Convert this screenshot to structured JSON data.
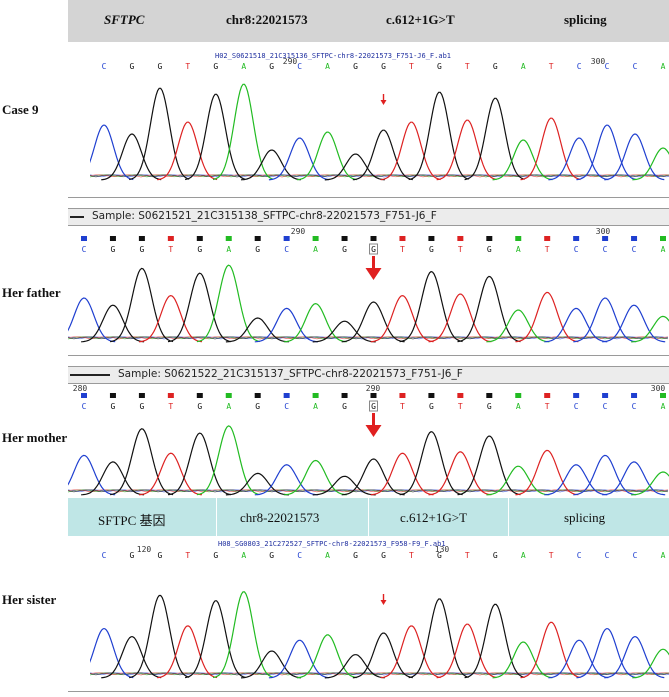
{
  "header_top": {
    "gene": "SFTPC",
    "position": "chr8:22021573",
    "variant": "c.612+1G>T",
    "type": "splicing"
  },
  "header_mid": {
    "gene": "SFTPC 基因",
    "position": "chr8-22021573",
    "variant": "c.612+1G>T",
    "type": "splicing"
  },
  "panels": [
    {
      "label": "Case 9",
      "filename": "H02_S0621518_21C315136_SFTPC-chr8-22021573_F751-J6_F.ab1",
      "sample": "",
      "ticks": [
        "290",
        "300"
      ],
      "bases": [
        "C",
        "G",
        "G",
        "T",
        "G",
        "A",
        "G",
        "C",
        "A",
        "G",
        "G",
        "T",
        "G",
        "T",
        "G",
        "A",
        "T",
        "C",
        "C",
        "C",
        "A"
      ]
    },
    {
      "label": "Her father",
      "filename": "",
      "sample": "Sample: S0621521_21C315138_SFTPC-chr8-22021573_F751-J6_F",
      "ticks": [
        "290",
        "300"
      ],
      "bases": [
        "C",
        "G",
        "G",
        "T",
        "G",
        "A",
        "G",
        "C",
        "A",
        "G",
        "G",
        "T",
        "G",
        "T",
        "G",
        "A",
        "T",
        "C",
        "C",
        "C",
        "A"
      ]
    },
    {
      "label": "Her mother",
      "filename": "",
      "sample": "Sample: S0621522_21C315137_SFTPC-chr8-22021573_F751-J6_F",
      "ticks": [
        "280",
        "290",
        "300"
      ],
      "bases": [
        "C",
        "G",
        "G",
        "T",
        "G",
        "A",
        "G",
        "C",
        "A",
        "G",
        "G",
        "T",
        "G",
        "T",
        "G",
        "A",
        "T",
        "C",
        "C",
        "C",
        "A"
      ]
    },
    {
      "label": "Her sister",
      "filename": "H08_SG0803_21C272527_SFTPC-chr8-22021573_F958-F9_F.ab1",
      "sample": "",
      "ticks": [
        "120",
        "130"
      ],
      "bases": [
        "C",
        "G",
        "G",
        "T",
        "G",
        "A",
        "G",
        "C",
        "A",
        "G",
        "G",
        "T",
        "G",
        "T",
        "G",
        "A",
        "T",
        "C",
        "C",
        "C",
        "A"
      ]
    }
  ],
  "colors": {
    "A": "#22bb22",
    "C": "#1f3fd0",
    "G": "#111111",
    "T": "#dd2222",
    "arrow": "#e02020"
  }
}
